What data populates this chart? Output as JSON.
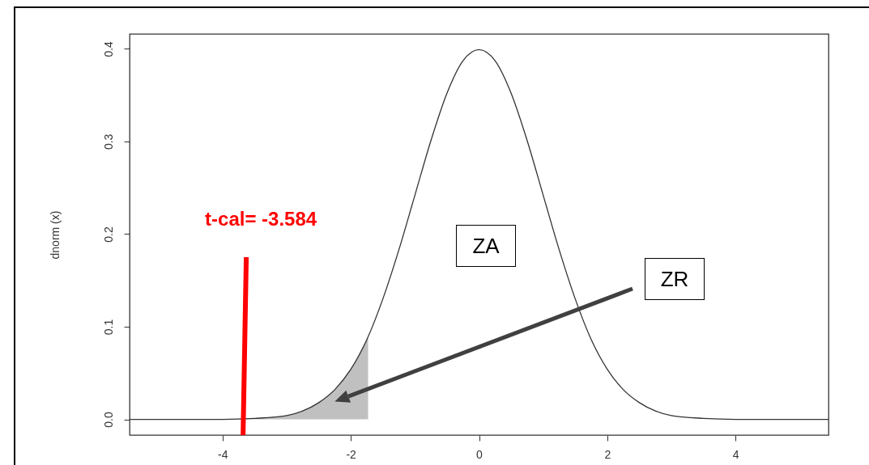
{
  "chart_data": {
    "type": "line",
    "ylabel": "dnorm (x)",
    "xlim": [
      -5.45,
      5.45
    ],
    "ylim": [
      -0.017,
      0.416
    ],
    "xticks": [
      -4,
      -2,
      0,
      2,
      4
    ],
    "yticks": [
      {
        "value": 0,
        "label": "0.0"
      },
      0.1,
      0.2,
      0.3,
      0.4
    ],
    "series": [
      {
        "type": "area",
        "color": "#c0c0c0",
        "x": [
          -5.45,
          -4,
          -3.5,
          -3,
          -2.75,
          -2.5,
          -2.25,
          -2,
          -1.73
        ],
        "values": [
          0,
          0,
          0.001,
          0.004,
          0.009,
          0.018,
          0.032,
          0.054,
          0.089
        ]
      },
      {
        "color": "#333333",
        "x": [
          -5.45,
          -4,
          -3.5,
          -3,
          -2.75,
          -2.5,
          -2.25,
          -2,
          -1.75,
          -1.5,
          -1.25,
          -1,
          -0.75,
          -0.5,
          -0.25,
          0,
          0.25,
          0.5,
          0.75,
          1,
          1.25,
          1.5,
          1.75,
          2,
          2.25,
          2.5,
          2.75,
          3,
          3.5,
          4,
          5.45
        ],
        "values": [
          0,
          0,
          0.001,
          0.004,
          0.009,
          0.018,
          0.032,
          0.054,
          0.086,
          0.13,
          0.183,
          0.242,
          0.301,
          0.352,
          0.387,
          0.399,
          0.387,
          0.352,
          0.301,
          0.242,
          0.183,
          0.13,
          0.086,
          0.054,
          0.032,
          0.018,
          0.009,
          0.004,
          0.001,
          0,
          0
        ]
      },
      {
        "name": "t-cal= -3.584",
        "color": "#ff0000",
        "x": [
          -3.68,
          -3.63
        ],
        "values": [
          -0.017,
          0.175
        ]
      }
    ],
    "annotations": [
      "ZA",
      "ZR"
    ]
  }
}
